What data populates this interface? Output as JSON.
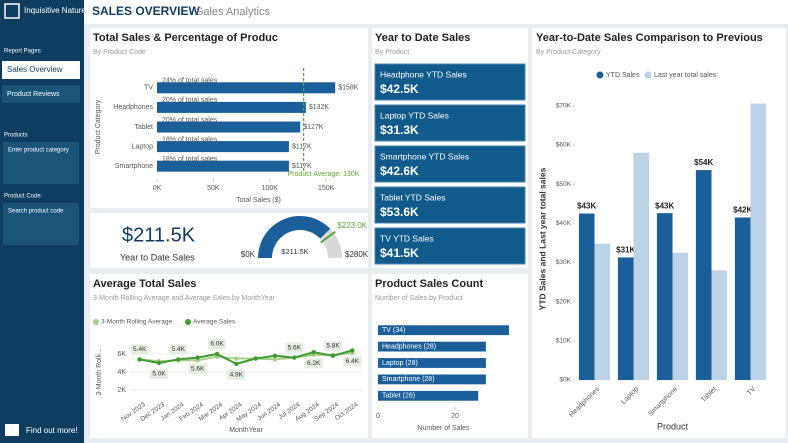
{
  "sidebar": {
    "brand": "Inquisitive Nature",
    "report_pages_label": "Report Pages",
    "pages": [
      "Sales Overview",
      "Product Reviews"
    ],
    "filters": [
      {
        "label": "Products",
        "placeholder": "Enter product category"
      },
      {
        "label": "Product Code",
        "placeholder": "Search product code"
      }
    ],
    "footer": "Find out more!"
  },
  "header": {
    "title": "SALES OVERVIEW",
    "subtitle": "Sales Analytics"
  },
  "kpi": {
    "label": "Year to Date Sales"
  },
  "ytd_cards": {
    "title": "Year to Date Sales",
    "subtitle": "By Product",
    "cards": [
      {
        "label": "Headphone YTD Sales",
        "value": "$42.5K"
      },
      {
        "label": "Laptop YTD Sales",
        "value": "$31.3K"
      },
      {
        "label": "Smartphone YTD Sales",
        "value": "$42.6K"
      },
      {
        "label": "Tablet YTD Sales",
        "value": "$53.6K"
      },
      {
        "label": "TV YTD Sales",
        "value": "$41.5K"
      }
    ]
  },
  "chart_data": [
    {
      "type": "bar",
      "orientation": "horizontal",
      "title": "Total Sales & Percentage of Produc",
      "subtitle": "By Product Code",
      "categories": [
        "TV",
        "Headphones",
        "Tablet",
        "Laptop",
        "Smartphone"
      ],
      "values": [
        158,
        132,
        127,
        117,
        117
      ],
      "value_labels": [
        "$158K",
        "$132K",
        "$127K",
        "$117K",
        "$117K"
      ],
      "annotations": [
        "24% of total sales",
        "20% of total sales",
        "20% of total sales",
        "18% of total sales",
        "18% of total sales"
      ],
      "color": "#1a5f9a",
      "xlim": [
        0,
        180
      ],
      "xticks": [
        {
          "value": 0,
          "label": "0K"
        },
        {
          "value": 50,
          "label": "50K"
        },
        {
          "value": 100,
          "label": "100K"
        },
        {
          "value": 150,
          "label": "150K"
        }
      ],
      "xlabel": "Total Sales ($)",
      "ylabel": "Product Category",
      "reference_line": {
        "value": 130,
        "label": "Product Average: 130K",
        "color": "#5aa832"
      }
    },
    {
      "type": "gauge",
      "value": 211.5,
      "value_label": "$211.5K",
      "min": 0,
      "min_label": "$0K",
      "max": 280,
      "max_label": "$280K",
      "target": 223,
      "target_label": "$223.0K",
      "color": "#1a5f9a"
    },
    {
      "type": "bar",
      "title": "Year-to-Date Sales Comparison to Previous",
      "subtitle": "By Product Category",
      "categories": [
        "Headphones",
        "Laptop",
        "Smartphone",
        "Tablet",
        "TV"
      ],
      "series": [
        {
          "name": "YTD Sales",
          "color": "#1a5f9a",
          "values": [
            42.5,
            31.3,
            42.6,
            53.6,
            41.5
          ],
          "value_labels": [
            "$43K",
            "$31K",
            "$43K",
            "$54K",
            "$42K"
          ]
        },
        {
          "name": "Last year total sales",
          "color": "#bcd2e6",
          "values": [
            34.8,
            58,
            32.5,
            28,
            70.6
          ]
        }
      ],
      "ylim": [
        0,
        72
      ],
      "yticks": [
        {
          "value": 0,
          "label": "$0K"
        },
        {
          "value": 10,
          "label": "$10K"
        },
        {
          "value": 20,
          "label": "$20K"
        },
        {
          "value": 30,
          "label": "$30K"
        },
        {
          "value": 40,
          "label": "$40K"
        },
        {
          "value": 50,
          "label": "$50K"
        },
        {
          "value": 60,
          "label": "$60K"
        },
        {
          "value": 70,
          "label": "$70K"
        }
      ],
      "xlabel": "Product",
      "ylabel": "YTD Sales and Last year total sales"
    },
    {
      "type": "line",
      "title": "Average Total Sales",
      "subtitle": "3-Month Rolling Average and Average Sales by MonthYear",
      "categories": [
        "Nov 2023",
        "Dec 2023",
        "Jan 2024",
        "Feb 2024",
        "Mar 2024",
        "Apr 2024",
        "May 2024",
        "Jun 2024",
        "Jul 2024",
        "Aug 2024",
        "Sep 2024",
        "Oct 2024"
      ],
      "series": [
        {
          "name": "3-Month Rolling Average",
          "color": "#a5d08a",
          "values": [
            5.4,
            5.2,
            5.3,
            5.3,
            5.7,
            5.5,
            5.5,
            5.4,
            5.6,
            5.9,
            5.9,
            6.1
          ]
        },
        {
          "name": "Average Sales",
          "color": "#3f9a2f",
          "values": [
            5.4,
            5.0,
            5.4,
            5.6,
            6.0,
            4.9,
            5.5,
            5.8,
            5.6,
            6.2,
            5.8,
            6.4
          ],
          "value_labels": [
            "5.4K",
            "5.0K",
            "5.4K",
            "5.6K",
            "6.0K",
            "4.9K",
            null,
            null,
            "5.6K",
            "6.2K",
            "5.8K",
            "6.4K"
          ]
        }
      ],
      "ylim": [
        1,
        7
      ],
      "yticks": [
        {
          "value": 2,
          "label": "2K"
        },
        {
          "value": 4,
          "label": "4K"
        },
        {
          "value": 6,
          "label": "6K"
        }
      ],
      "xlabel": "MonthYear",
      "ylabel": "3-Month Rolli..."
    },
    {
      "type": "bar",
      "orientation": "horizontal",
      "title": "Product Sales Count",
      "subtitle": "Number of Sales by Product",
      "values": [
        34,
        28,
        28,
        28,
        26
      ],
      "value_labels": [
        "TV (34)",
        "Headphones (28)",
        "Laptop (28)",
        "Smartphone (28)",
        "Tablet (26)"
      ],
      "color": "#1a5f9a",
      "xlim": [
        0,
        34
      ],
      "xticks": [
        0,
        20
      ],
      "xlabel": "Number of Sales"
    }
  ]
}
